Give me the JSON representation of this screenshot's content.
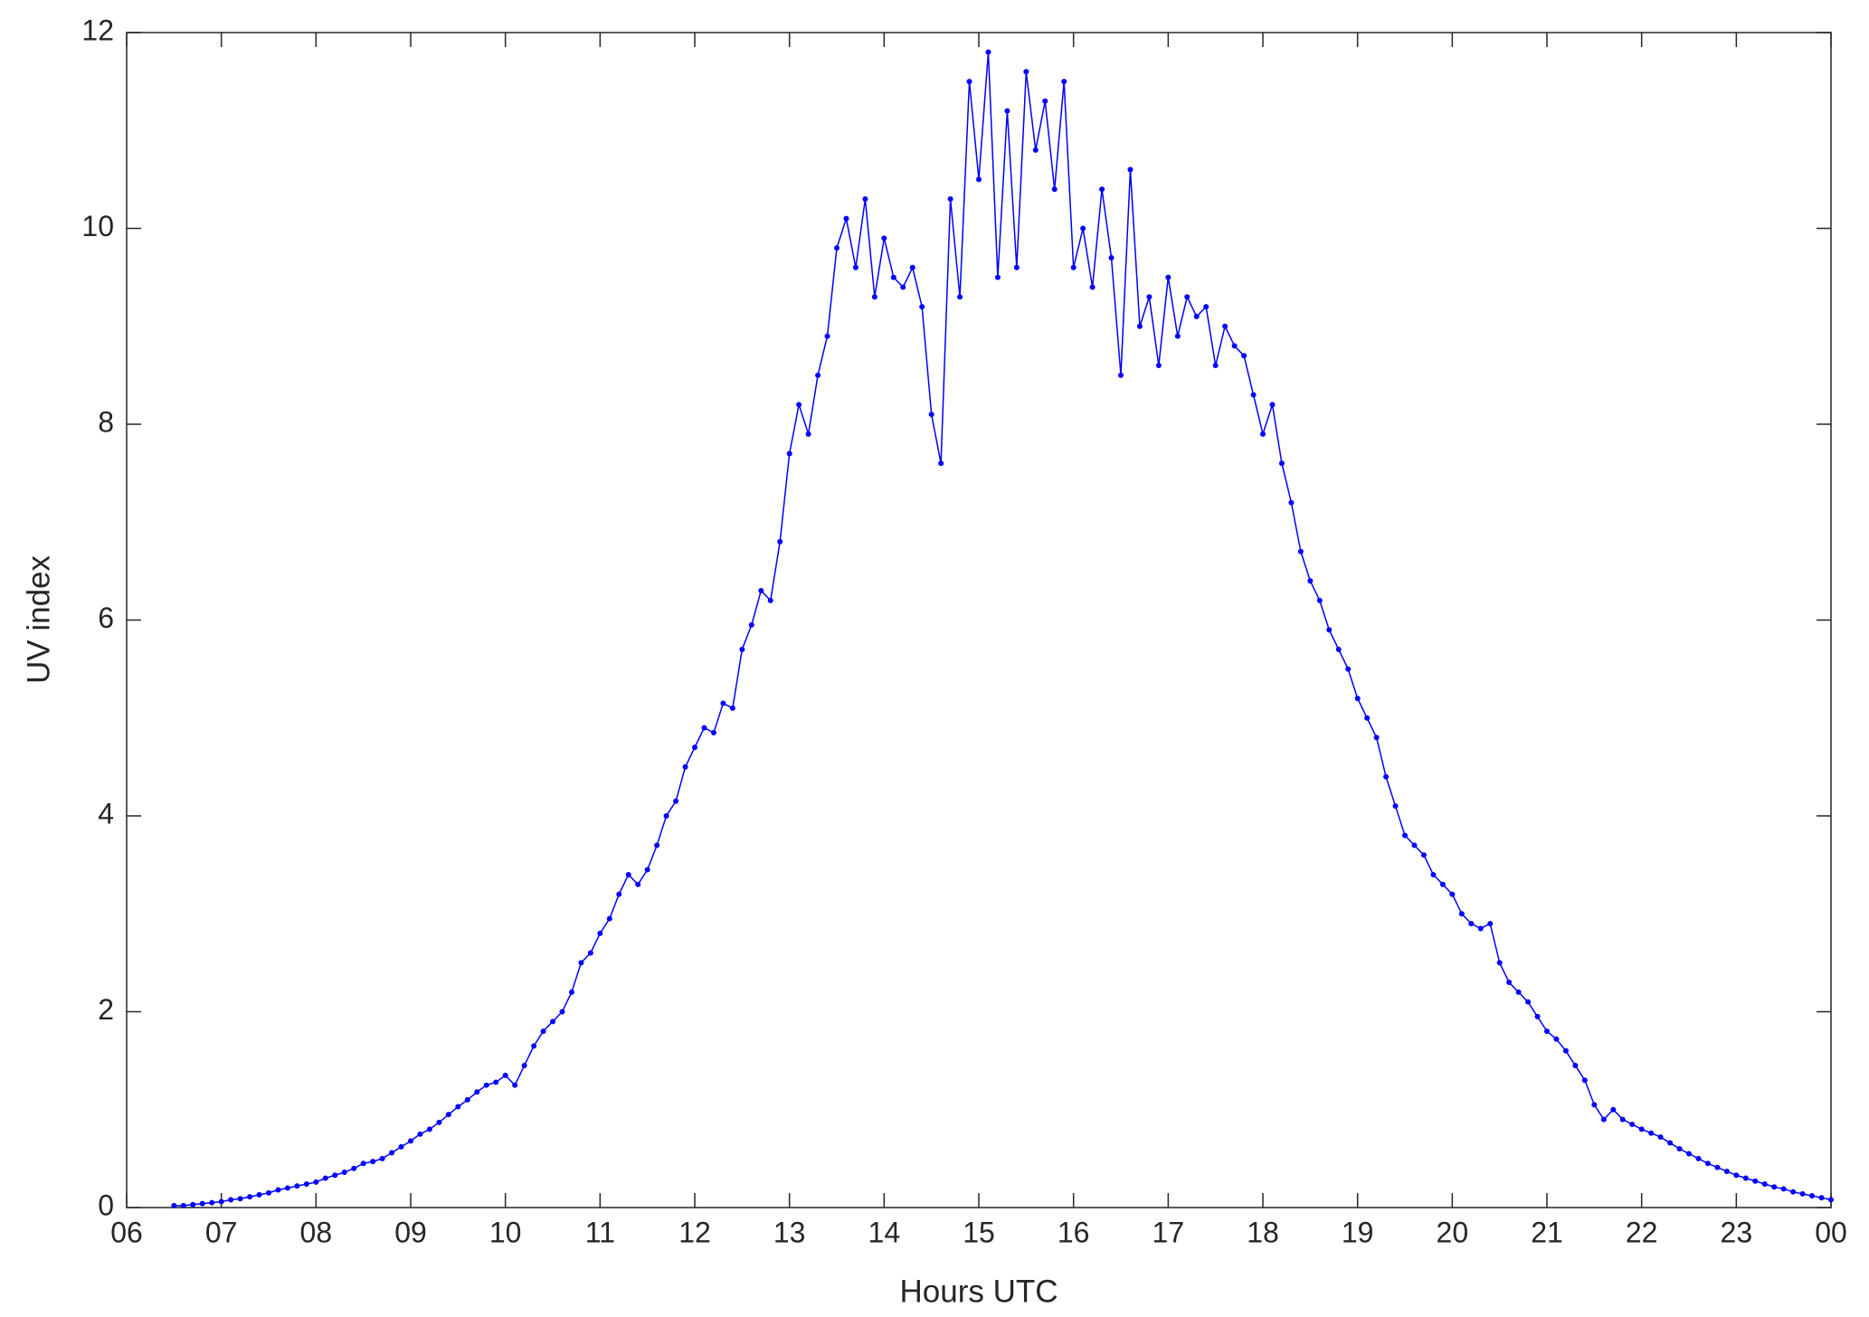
{
  "chart_data": {
    "type": "line",
    "x_label": "Hours UTC",
    "y_label": "UV index",
    "color": "#0000ff",
    "marker": true,
    "xlim": [
      6,
      24
    ],
    "ylim": [
      0,
      12
    ],
    "xticks": [
      {
        "value": 6,
        "label": "06"
      },
      {
        "value": 7,
        "label": "07"
      },
      {
        "value": 8,
        "label": "08"
      },
      {
        "value": 9,
        "label": "09"
      },
      10,
      11,
      12,
      13,
      14,
      15,
      16,
      17,
      18,
      19,
      20,
      21,
      22,
      23,
      {
        "value": 24,
        "label": "00"
      }
    ],
    "yticks": [
      0,
      2,
      4,
      6,
      8,
      10,
      12
    ],
    "x": [
      6.5,
      6.6,
      6.7,
      6.8,
      6.9,
      7.0,
      7.1,
      7.2,
      7.3,
      7.4,
      7.5,
      7.6,
      7.7,
      7.8,
      7.9,
      8.0,
      8.1,
      8.2,
      8.3,
      8.4,
      8.5,
      8.6,
      8.7,
      8.8,
      8.9,
      9.0,
      9.1,
      9.2,
      9.3,
      9.4,
      9.5,
      9.6,
      9.7,
      9.8,
      9.9,
      10.0,
      10.1,
      10.2,
      10.3,
      10.4,
      10.5,
      10.6,
      10.7,
      10.8,
      10.9,
      11.0,
      11.1,
      11.2,
      11.3,
      11.4,
      11.5,
      11.6,
      11.7,
      11.8,
      11.9,
      12.0,
      12.1,
      12.2,
      12.3,
      12.4,
      12.5,
      12.6,
      12.7,
      12.8,
      12.9,
      13.0,
      13.1,
      13.2,
      13.3,
      13.4,
      13.5,
      13.6,
      13.7,
      13.8,
      13.9,
      14.0,
      14.1,
      14.2,
      14.3,
      14.4,
      14.5,
      14.6,
      14.7,
      14.8,
      14.9,
      15.0,
      15.1,
      15.2,
      15.3,
      15.4,
      15.5,
      15.6,
      15.7,
      15.8,
      15.9,
      16.0,
      16.1,
      16.2,
      16.3,
      16.4,
      16.5,
      16.6,
      16.7,
      16.8,
      16.9,
      17.0,
      17.1,
      17.2,
      17.3,
      17.4,
      17.5,
      17.6,
      17.7,
      17.8,
      17.9,
      18.0,
      18.1,
      18.2,
      18.3,
      18.4,
      18.5,
      18.6,
      18.7,
      18.8,
      18.9,
      19.0,
      19.1,
      19.2,
      19.3,
      19.4,
      19.5,
      19.6,
      19.7,
      19.8,
      19.9,
      20.0,
      20.1,
      20.2,
      20.3,
      20.4,
      20.5,
      20.6,
      20.7,
      20.8,
      20.9,
      21.0,
      21.1,
      21.2,
      21.3,
      21.4,
      21.5,
      21.6,
      21.7,
      21.8,
      21.9,
      22.0,
      22.1,
      22.2,
      22.3,
      22.4,
      22.5,
      22.6,
      22.7,
      22.8,
      22.9,
      23.0,
      23.1,
      23.2,
      23.3,
      23.4,
      23.5,
      23.6,
      23.7,
      23.8,
      23.9,
      24.0
    ],
    "values": [
      0.02,
      0.02,
      0.03,
      0.04,
      0.05,
      0.06,
      0.08,
      0.09,
      0.11,
      0.13,
      0.15,
      0.18,
      0.2,
      0.22,
      0.24,
      0.26,
      0.3,
      0.33,
      0.36,
      0.4,
      0.45,
      0.47,
      0.5,
      0.56,
      0.62,
      0.68,
      0.75,
      0.8,
      0.87,
      0.95,
      1.03,
      1.1,
      1.18,
      1.25,
      1.28,
      1.35,
      1.25,
      1.45,
      1.65,
      1.8,
      1.9,
      2.0,
      2.2,
      2.5,
      2.6,
      2.8,
      2.95,
      3.2,
      3.4,
      3.3,
      3.45,
      3.7,
      4.0,
      4.15,
      4.5,
      4.7,
      4.9,
      4.85,
      5.15,
      5.1,
      5.7,
      5.95,
      6.3,
      6.2,
      6.8,
      7.7,
      8.2,
      7.9,
      8.5,
      8.9,
      9.8,
      10.1,
      9.6,
      10.3,
      9.3,
      9.9,
      9.5,
      9.4,
      9.6,
      9.2,
      8.1,
      7.6,
      10.3,
      9.3,
      11.5,
      10.5,
      11.8,
      9.5,
      11.2,
      9.6,
      11.6,
      10.8,
      11.3,
      10.4,
      11.5,
      9.6,
      10.0,
      9.4,
      10.4,
      9.7,
      8.5,
      10.6,
      9.0,
      9.3,
      8.6,
      9.5,
      8.9,
      9.3,
      9.1,
      9.2,
      8.6,
      9.0,
      8.8,
      8.7,
      8.3,
      7.9,
      8.2,
      7.6,
      7.2,
      6.7,
      6.4,
      6.2,
      5.9,
      5.7,
      5.5,
      5.2,
      5.0,
      4.8,
      4.4,
      4.1,
      3.8,
      3.7,
      3.6,
      3.4,
      3.3,
      3.2,
      3.0,
      2.9,
      2.85,
      2.9,
      2.5,
      2.3,
      2.2,
      2.1,
      1.95,
      1.8,
      1.72,
      1.6,
      1.45,
      1.3,
      1.05,
      0.9,
      1.0,
      0.9,
      0.85,
      0.8,
      0.76,
      0.72,
      0.66,
      0.6,
      0.55,
      0.5,
      0.45,
      0.41,
      0.37,
      0.33,
      0.3,
      0.27,
      0.24,
      0.21,
      0.19,
      0.16,
      0.14,
      0.12,
      0.1,
      0.08
    ]
  }
}
